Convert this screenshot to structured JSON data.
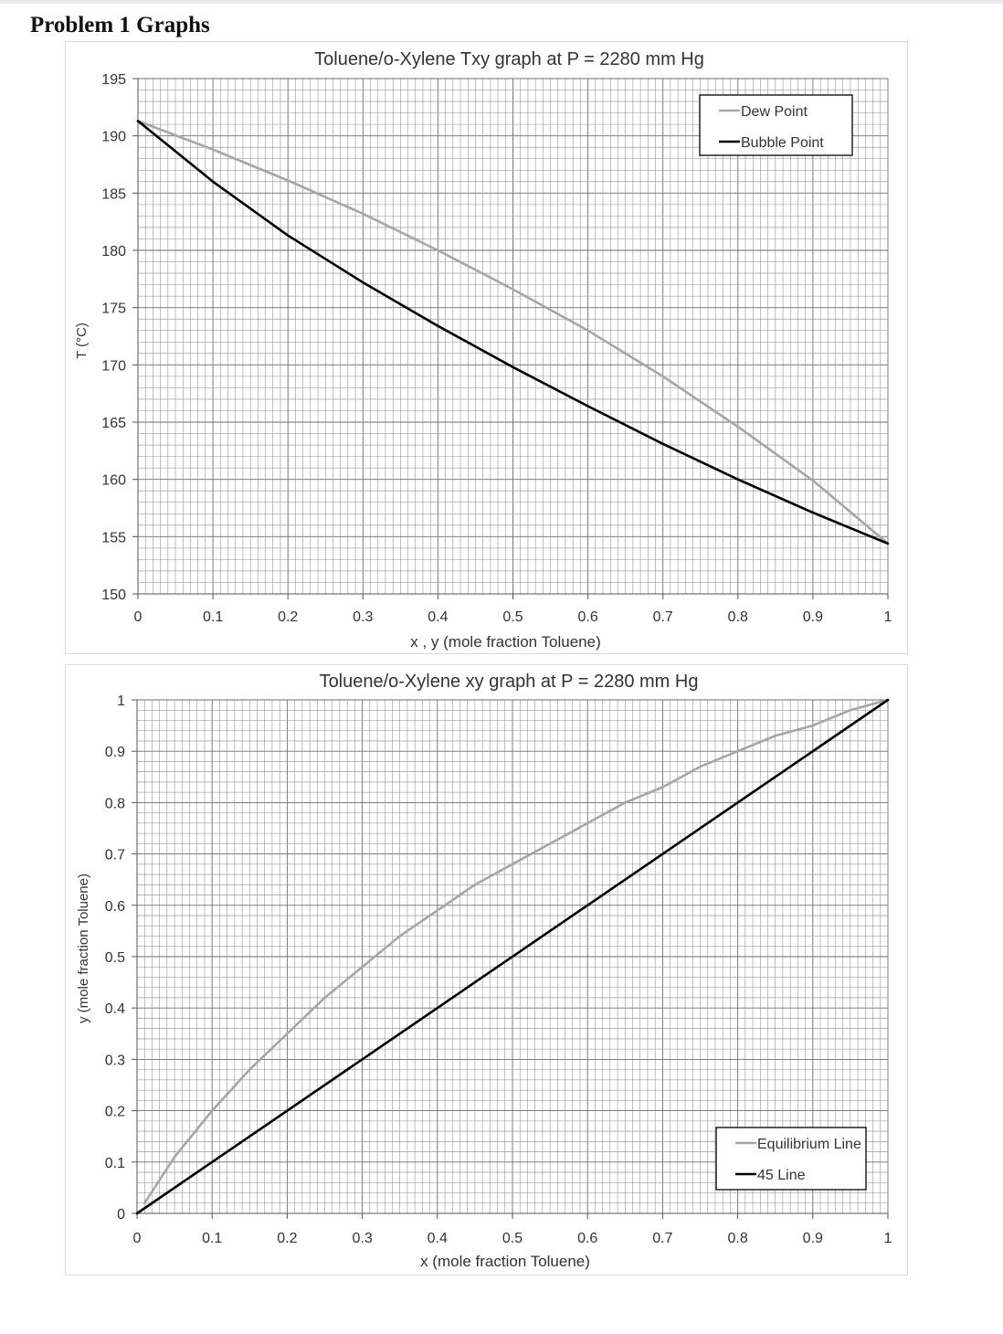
{
  "page": {
    "heading": "Problem 1 Graphs"
  },
  "chart_data": [
    {
      "type": "line",
      "title": "Toluene/o-Xylene Txy graph at P = 2280 mm Hg",
      "xlabel": "x , y (mole fraction Toluene)",
      "ylabel": "T (°C)",
      "xlim": [
        0,
        1
      ],
      "ylim": [
        150,
        195
      ],
      "x_ticks": [
        "0",
        "0.1",
        "0.2",
        "0.3",
        "0.4",
        "0.5",
        "0.6",
        "0.7",
        "0.8",
        "0.9",
        "1"
      ],
      "y_ticks": [
        "150",
        "155",
        "160",
        "165",
        "170",
        "175",
        "180",
        "185",
        "190",
        "195"
      ],
      "grid": true,
      "legend_position": "top-right",
      "series": [
        {
          "name": "Dew Point",
          "color": "#a6a6a6",
          "x": [
            0,
            0.1,
            0.2,
            0.3,
            0.4,
            0.5,
            0.6,
            0.7,
            0.8,
            0.9,
            1.0
          ],
          "y": [
            191.3,
            188.8,
            186.1,
            183.2,
            180.0,
            176.6,
            173.0,
            169.0,
            164.6,
            159.9,
            154.4
          ]
        },
        {
          "name": "Bubble Point",
          "color": "#000000",
          "x": [
            0,
            0.1,
            0.2,
            0.3,
            0.4,
            0.5,
            0.6,
            0.7,
            0.8,
            0.9,
            1.0
          ],
          "y": [
            191.3,
            186.0,
            181.3,
            177.2,
            173.4,
            169.8,
            166.4,
            163.1,
            160.0,
            157.1,
            154.4
          ]
        }
      ]
    },
    {
      "type": "line",
      "title": "Toluene/o-Xylene xy graph at P = 2280 mm Hg",
      "xlabel": "x (mole fraction Toluene)",
      "ylabel": "y (mole fraction Toluene)",
      "xlim": [
        0,
        1
      ],
      "ylim": [
        0,
        1
      ],
      "x_ticks": [
        "0",
        "0.1",
        "0.2",
        "0.3",
        "0.4",
        "0.5",
        "0.6",
        "0.7",
        "0.8",
        "0.9",
        "1"
      ],
      "y_ticks": [
        "0",
        "0.1",
        "0.2",
        "0.3",
        "0.4",
        "0.5",
        "0.6",
        "0.7",
        "0.8",
        "0.9",
        "1"
      ],
      "grid": true,
      "legend_position": "bottom-right",
      "series": [
        {
          "name": "Equilibrium Line",
          "color": "#a6a6a6",
          "x": [
            0.01,
            0.05,
            0.1,
            0.15,
            0.2,
            0.25,
            0.3,
            0.35,
            0.4,
            0.45,
            0.5,
            0.55,
            0.6,
            0.65,
            0.7,
            0.75,
            0.8,
            0.85,
            0.9,
            0.95,
            1.0
          ],
          "y": [
            0.02,
            0.11,
            0.2,
            0.28,
            0.35,
            0.42,
            0.48,
            0.54,
            0.59,
            0.64,
            0.68,
            0.72,
            0.76,
            0.8,
            0.83,
            0.87,
            0.9,
            0.93,
            0.95,
            0.98,
            1.0
          ]
        },
        {
          "name": "45 Line",
          "color": "#000000",
          "x": [
            0,
            1
          ],
          "y": [
            0,
            1
          ]
        }
      ]
    }
  ]
}
